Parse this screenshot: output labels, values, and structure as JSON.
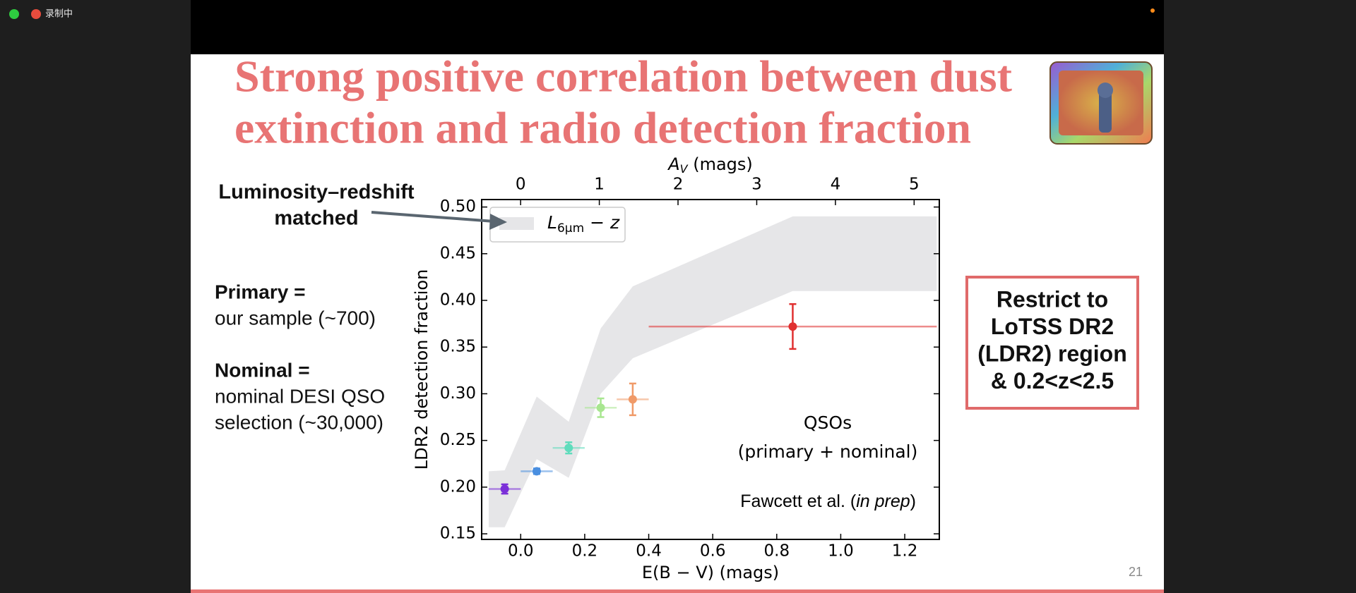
{
  "app": {
    "recording_label": "录制中"
  },
  "slide": {
    "title_lines": [
      "Strong positive correlation between dust",
      "extinction and radio detection fraction"
    ],
    "annotation_lines": [
      "Luminosity–redshift",
      "matched"
    ],
    "notes": [
      [
        "Primary =",
        "our sample (~700)"
      ],
      [
        "Nominal =",
        "nominal DESI QSO",
        "selection (~30,000)"
      ]
    ],
    "box_lines": [
      "Restrict to",
      "LoTSS DR2",
      "(LDR2) region",
      "& 0.2<z<2.5"
    ],
    "page_number": "21"
  },
  "chart_data": {
    "type": "errorbar",
    "x_label": "E(B − V) (mags)",
    "x2_label": {
      "symbol": "A",
      "subscript": "V",
      "rest": " (mags)"
    },
    "y_label": "LDR2 detection fraction",
    "xlim": [
      -0.122,
      1.308
    ],
    "x2lim": [
      -0.495,
      5.32
    ],
    "ylim": [
      0.144,
      0.508
    ],
    "xticks": [
      {
        "value": 0,
        "label": "0.0"
      },
      0.2,
      0.4,
      0.6,
      0.8,
      {
        "value": 1,
        "label": "1.0"
      },
      1.2
    ],
    "x2ticks": [
      0,
      1,
      2,
      3,
      4,
      5
    ],
    "yticks": [
      0.15,
      {
        "value": 0.2,
        "label": "0.20"
      },
      0.25,
      {
        "value": 0.3,
        "label": "0.30"
      },
      0.35,
      {
        "value": 0.4,
        "label": "0.40"
      },
      0.45,
      {
        "value": 0.5,
        "label": "0.50"
      }
    ],
    "x": [
      -0.05,
      0.05,
      0.15,
      0.25,
      0.35,
      0.85
    ],
    "values": [
      0.198,
      0.217,
      0.242,
      0.285,
      0.294,
      0.372
    ],
    "xerr": [
      0.05,
      0.05,
      0.05,
      0.05,
      0.05,
      0.45
    ],
    "yerr": [
      0.005,
      0.003,
      0.006,
      0.01,
      0.017,
      0.024
    ],
    "colors": [
      "#7b2fd8",
      "#4a8fe0",
      "#5fdcbc",
      "#a8e690",
      "#f09a68",
      "#e03030"
    ],
    "band": {
      "label": "L",
      "label_sub": "6µm",
      "label_rest": " − z",
      "color": "#e6e6e8",
      "x": [
        -0.1,
        -0.05,
        0.05,
        0.15,
        0.25,
        0.35,
        0.85,
        1.3
      ],
      "lower": [
        0.157,
        0.157,
        0.23,
        0.21,
        0.3,
        0.338,
        0.41,
        0.41
      ],
      "upper": [
        0.217,
        0.218,
        0.297,
        0.27,
        0.37,
        0.415,
        0.49,
        0.49
      ]
    },
    "text_lines": [
      "QSOs",
      "(primary + nominal)"
    ],
    "credit": {
      "before": "Fawcett et al. (",
      "italic": "in prep",
      "after": ")"
    }
  }
}
